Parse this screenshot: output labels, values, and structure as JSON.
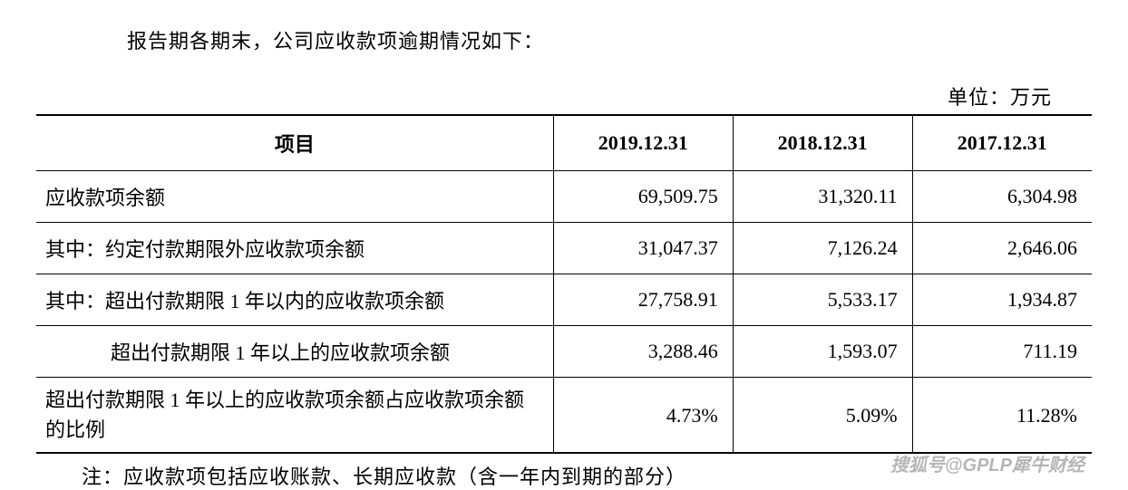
{
  "intro": "报告期各期末，公司应收款项逾期情况如下：",
  "unit": "单位：万元",
  "table": {
    "columns": [
      "项目",
      "2019.12.31",
      "2018.12.31",
      "2017.12.31"
    ],
    "col_widths": [
      "49%",
      "17%",
      "17%",
      "17%"
    ],
    "rows": [
      {
        "label": "应收款项余额",
        "indent": 0,
        "values": [
          "69,509.75",
          "31,320.11",
          "6,304.98"
        ]
      },
      {
        "label": "其中：约定付款期限外应收款项余额",
        "indent": 0,
        "values": [
          "31,047.37",
          "7,126.24",
          "2,646.06"
        ]
      },
      {
        "label": "其中：超出付款期限 1 年以内的应收款项余额",
        "indent": 0,
        "values": [
          "27,758.91",
          "5,533.17",
          "1,934.87"
        ]
      },
      {
        "label": "超出付款期限 1 年以上的应收款项余额",
        "indent": 2,
        "values": [
          "3,288.46",
          "1,593.07",
          "711.19"
        ]
      },
      {
        "label": "超出付款期限 1 年以上的应收款项余额占应收款项余额的比例",
        "indent": 0,
        "values": [
          "4.73%",
          "5.09%",
          "11.28%"
        ],
        "last": true
      }
    ],
    "header_fontsize": 22,
    "body_fontsize": 22,
    "border_color": "#000000",
    "background": "#ffffff"
  },
  "note": "注：应收款项包括应收账款、长期应收款（含一年内到期的部分）",
  "watermark": "搜狐号@GPLP犀牛财经"
}
